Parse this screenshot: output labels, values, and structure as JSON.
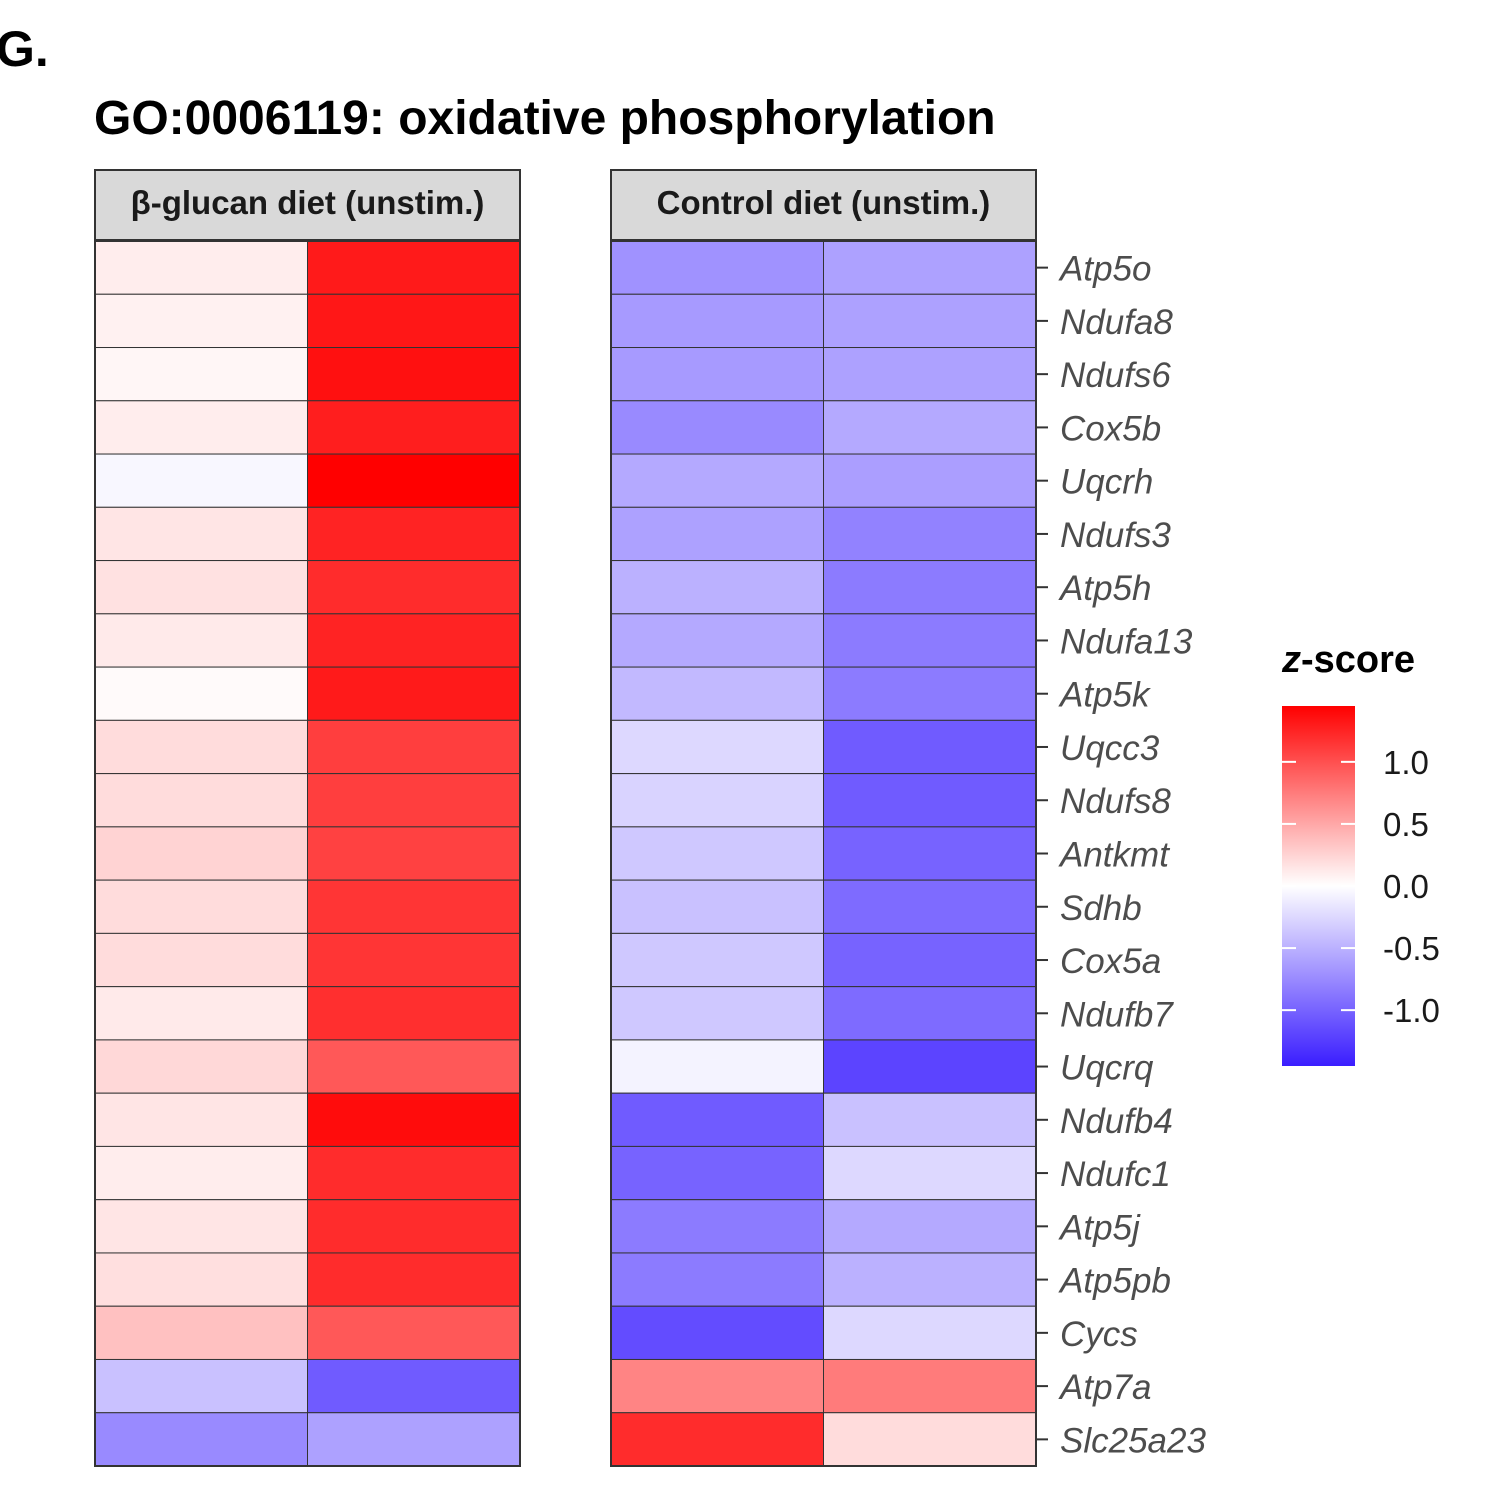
{
  "panel_label": "G.",
  "chart_data": {
    "type": "heatmap",
    "title": "GO:0006119: oxidative phosphorylation",
    "facets": [
      {
        "name": "β-glucan  diet (unstim.)"
      },
      {
        "name": "Control diet (unstim.)"
      }
    ],
    "genes": [
      "Atp5o",
      "Ndufa8",
      "Ndufs6",
      "Cox5b",
      "Uqcrh",
      "Ndufs3",
      "Atp5h",
      "Ndufa13",
      "Atp5k",
      "Uqcc3",
      "Ndufs8",
      "Antkmt",
      "Sdhb",
      "Cox5a",
      "Ndufb7",
      "Uqcrq",
      "Ndufb4",
      "Ndufc1",
      "Atp5j",
      "Atp5pb",
      "Cycs",
      "Atp7a",
      "Slc25a23"
    ],
    "values": [
      [
        0.1,
        1.3,
        -0.7,
        -0.6
      ],
      [
        0.08,
        1.32,
        -0.65,
        -0.6
      ],
      [
        0.05,
        1.36,
        -0.65,
        -0.6
      ],
      [
        0.1,
        1.28,
        -0.75,
        -0.55
      ],
      [
        -0.05,
        1.45,
        -0.55,
        -0.62
      ],
      [
        0.15,
        1.25,
        -0.6,
        -0.8
      ],
      [
        0.17,
        1.2,
        -0.5,
        -0.85
      ],
      [
        0.12,
        1.25,
        -0.55,
        -0.85
      ],
      [
        0.03,
        1.3,
        -0.45,
        -0.85
      ],
      [
        0.2,
        1.1,
        -0.25,
        -1.05
      ],
      [
        0.2,
        1.1,
        -0.28,
        -1.05
      ],
      [
        0.25,
        1.08,
        -0.35,
        -1.0
      ],
      [
        0.2,
        1.15,
        -0.4,
        -0.95
      ],
      [
        0.2,
        1.15,
        -0.35,
        -1.0
      ],
      [
        0.12,
        1.18,
        -0.35,
        -0.95
      ],
      [
        0.22,
        0.95,
        -0.08,
        -1.2
      ],
      [
        0.15,
        1.38,
        -1.05,
        -0.4
      ],
      [
        0.1,
        1.2,
        -1.0,
        -0.25
      ],
      [
        0.15,
        1.2,
        -0.85,
        -0.55
      ],
      [
        0.18,
        1.2,
        -0.85,
        -0.5
      ],
      [
        0.35,
        0.95,
        -1.15,
        -0.25
      ],
      [
        -0.4,
        -1.05,
        0.7,
        0.75
      ],
      [
        -0.75,
        -0.6,
        1.2,
        0.2
      ]
    ],
    "legend": {
      "title": "z-score",
      "title_italic_part": "z",
      "title_rest": "-score",
      "ticks": [
        {
          "value": 1.0,
          "label": "1.0"
        },
        {
          "value": 0.5,
          "label": "0.5"
        },
        {
          "value": 0.0,
          "label": "0.0"
        },
        {
          "value": -0.5,
          "label": "-0.5"
        },
        {
          "value": -1.0,
          "label": "-1.0"
        }
      ],
      "range": [
        -1.45,
        1.45
      ],
      "placement": "right"
    },
    "colors": {
      "low": "#3a1dff",
      "mid": "#ffffff",
      "high": "#ff0000"
    }
  }
}
